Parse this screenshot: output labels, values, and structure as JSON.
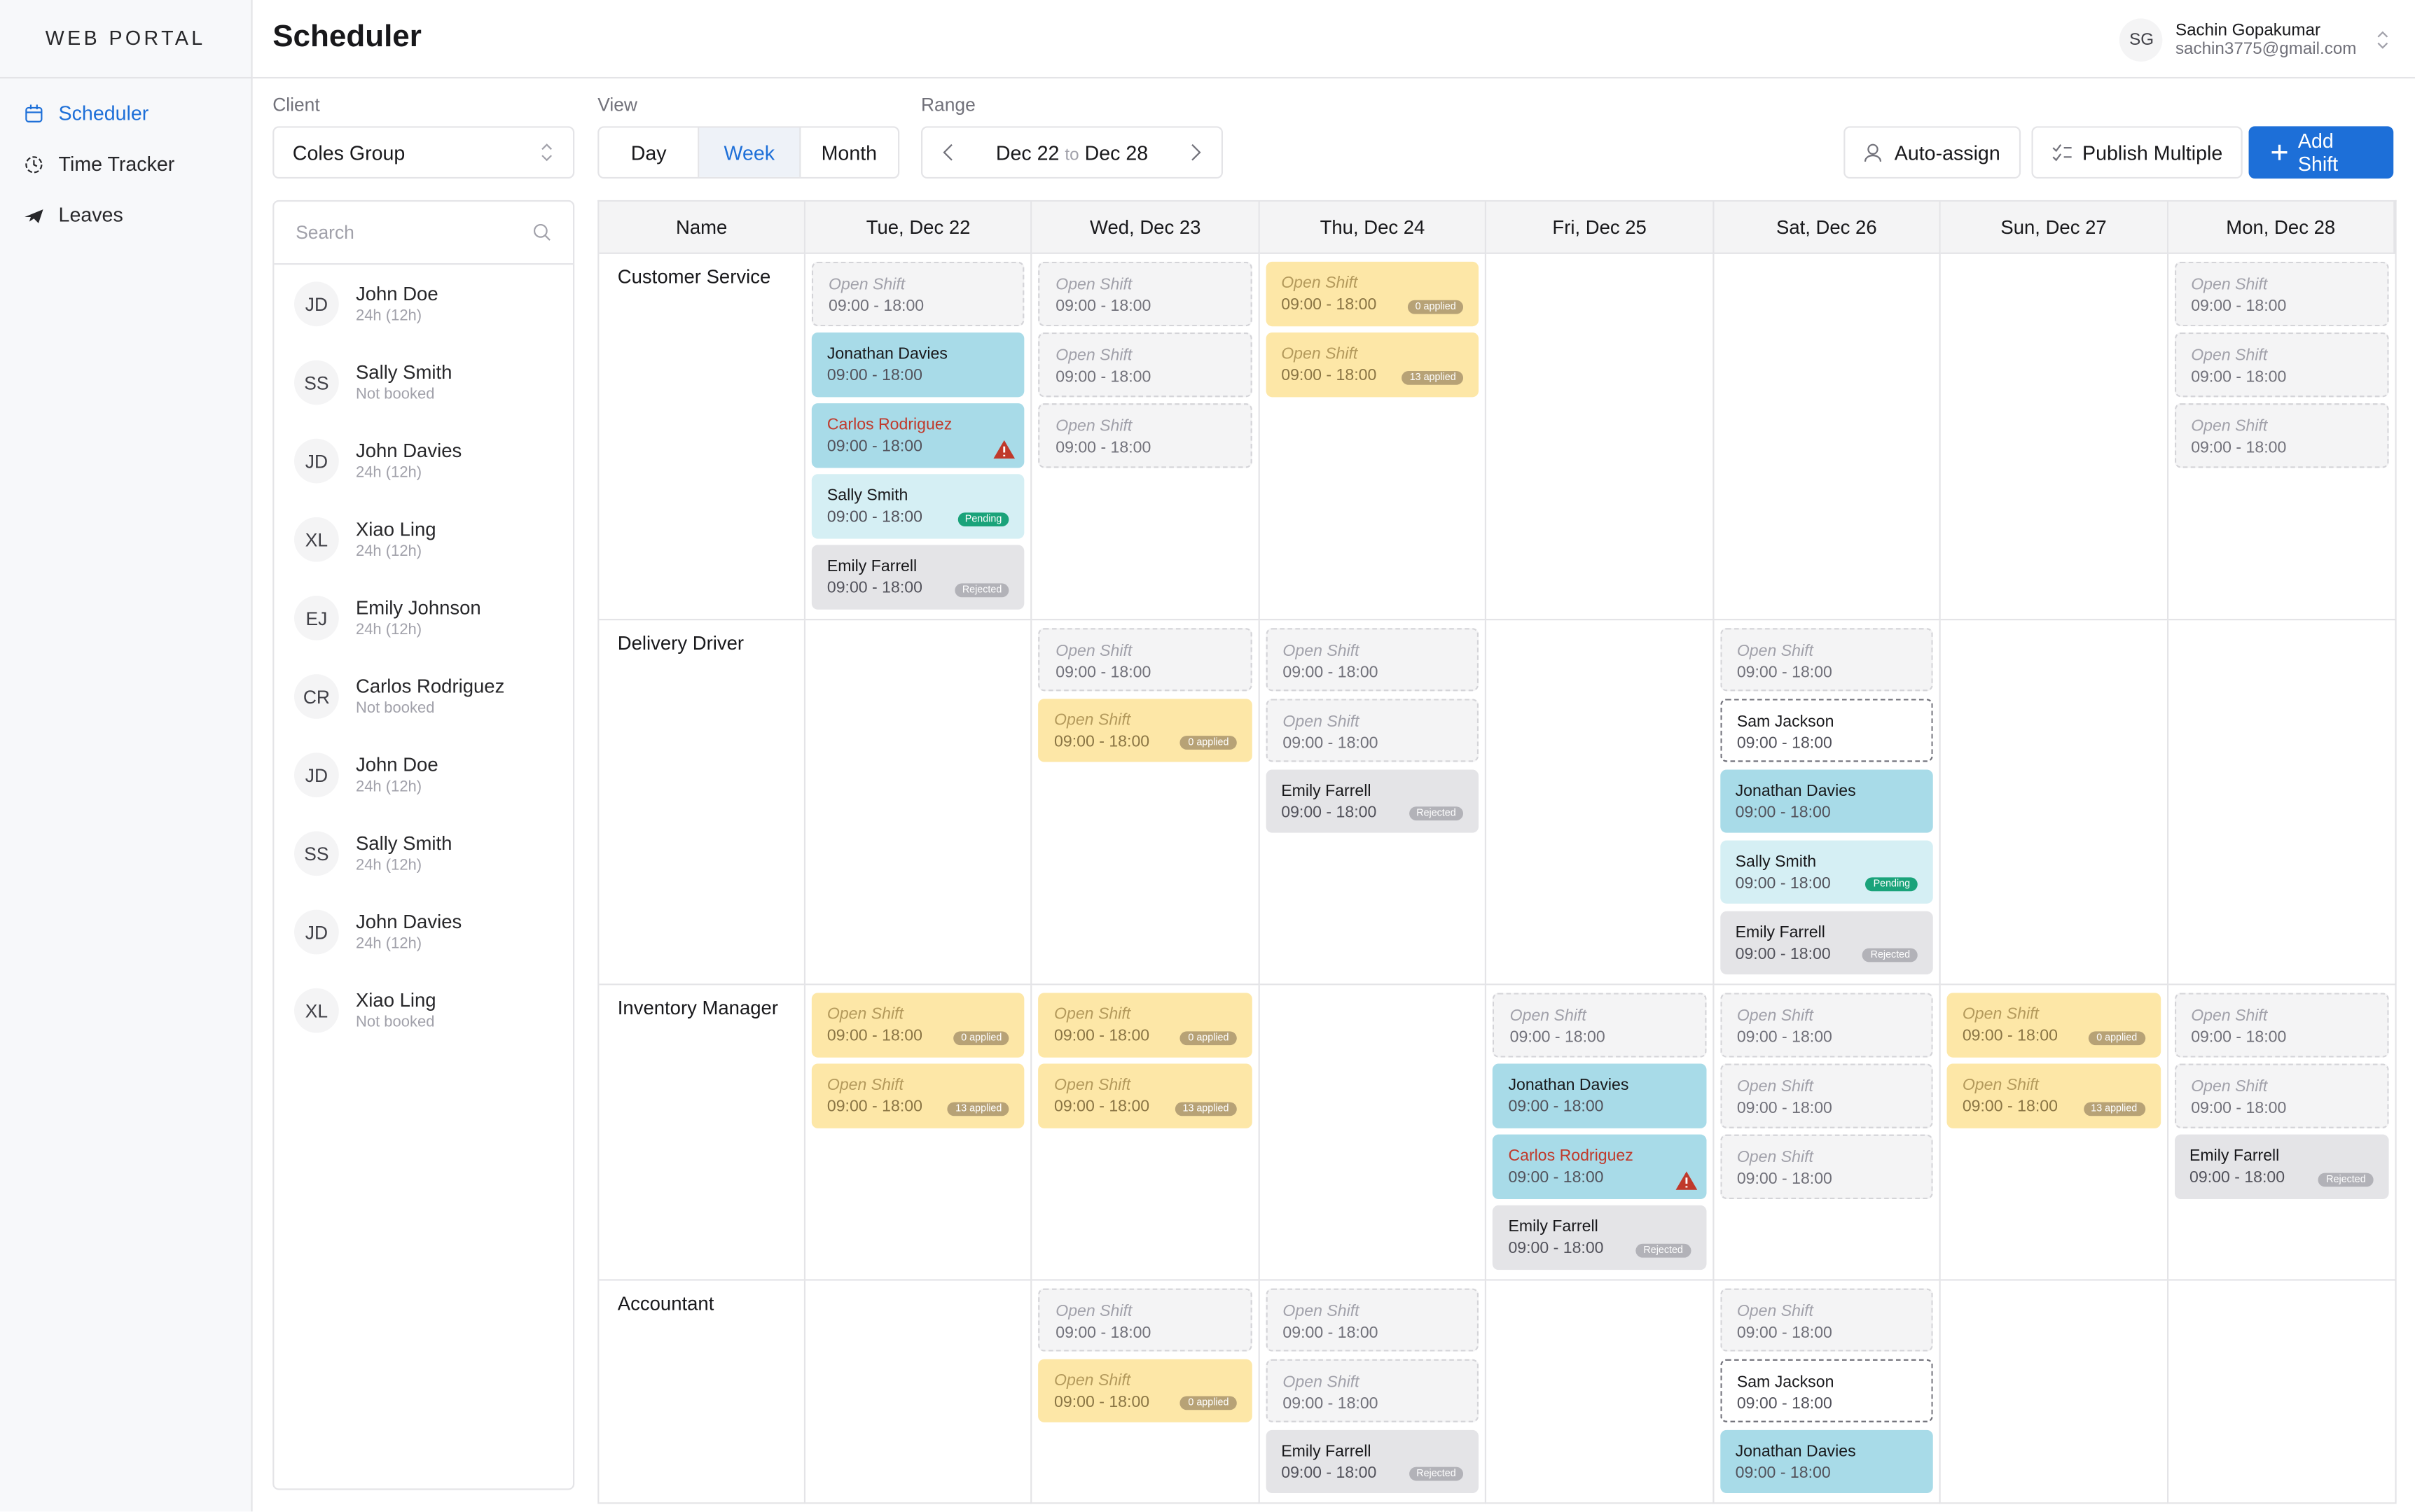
{
  "sidebar": {
    "brand": "WEB PORTAL",
    "nav": [
      "Scheduler",
      "Time Tracker",
      "Leaves"
    ]
  },
  "header": {
    "title": "Scheduler",
    "user": {
      "initials": "SG",
      "name": "Sachin Gopakumar",
      "email": "sachin3775@gmail.com"
    }
  },
  "toolbar": {
    "client_label": "Client",
    "client": "Coles Group",
    "view_label": "View",
    "views": [
      "Day",
      "Week",
      "Month"
    ],
    "active_view": "Week",
    "range_label": "Range",
    "range_from": "Dec 22",
    "range_sep": "to",
    "range_to": "Dec 28",
    "buttons": [
      "Auto-assign",
      "Publish Multiple",
      "Add Shift"
    ]
  },
  "staff": {
    "search_placeholder": "Search",
    "people": [
      {
        "initials": "JD",
        "name": "John Doe",
        "hours": "24h (12h)"
      },
      {
        "initials": "SS",
        "name": "Sally Smith",
        "hours": "Not booked"
      },
      {
        "initials": "JD",
        "name": "John Davies",
        "hours": "24h (12h)"
      },
      {
        "initials": "XL",
        "name": "Xiao Ling",
        "hours": "24h (12h)"
      },
      {
        "initials": "EJ",
        "name": "Emily Johnson",
        "hours": "24h (12h)"
      },
      {
        "initials": "CR",
        "name": "Carlos Rodriguez",
        "hours": "Not booked"
      },
      {
        "initials": "JD",
        "name": "John Doe",
        "hours": "24h (12h)"
      },
      {
        "initials": "SS",
        "name": "Sally Smith",
        "hours": "24h (12h)"
      },
      {
        "initials": "JD",
        "name": "John Davies",
        "hours": "24h (12h)"
      },
      {
        "initials": "XL",
        "name": "Xiao Ling",
        "hours": "Not booked"
      }
    ]
  },
  "schedule": {
    "name_header": "Name",
    "days": [
      "Tue, Dec 22",
      "Wed, Dec 23",
      "Thu, Dec 24",
      "Fri, Dec 25",
      "Sat, Dec 26",
      "Sun, Dec 27",
      "Mon, Dec 28"
    ],
    "rows": [
      {
        "role": "Customer Service",
        "cells": [
          [
            {
              "style": "open",
              "label": "Open Shift",
              "time": "09:00 - 18:00"
            },
            {
              "style": "confirmed",
              "label": "Jonathan Davies",
              "time": "09:00 - 18:00"
            },
            {
              "style": "conflict",
              "label": "Carlos Rodriguez",
              "time": "09:00 - 18:00"
            },
            {
              "style": "pending",
              "label": "Sally Smith",
              "time": "09:00 - 18:00",
              "badge": "Pending"
            },
            {
              "style": "rejected",
              "label": "Emily Farrell",
              "time": "09:00 - 18:00",
              "badge": "Rejected"
            }
          ],
          [
            {
              "style": "open",
              "label": "Open Shift",
              "time": "09:00 - 18:00"
            },
            {
              "style": "open",
              "label": "Open Shift",
              "time": "09:00 - 18:00"
            },
            {
              "style": "open",
              "label": "Open Shift",
              "time": "09:00 - 18:00"
            }
          ],
          [
            {
              "style": "applied",
              "label": "Open Shift",
              "time": "09:00 - 18:00",
              "badge": "0 applied"
            },
            {
              "style": "applied",
              "label": "Open Shift",
              "time": "09:00 - 18:00",
              "badge": "13 applied"
            }
          ],
          [],
          [],
          [],
          [
            {
              "style": "open",
              "label": "Open Shift",
              "time": "09:00 - 18:00"
            },
            {
              "style": "open",
              "label": "Open Shift",
              "time": "09:00 - 18:00"
            },
            {
              "style": "open",
              "label": "Open Shift",
              "time": "09:00 - 18:00"
            }
          ]
        ]
      },
      {
        "role": "Delivery Driver",
        "cells": [
          [],
          [
            {
              "style": "open",
              "label": "Open Shift",
              "time": "09:00 - 18:00"
            },
            {
              "style": "applied",
              "label": "Open Shift",
              "time": "09:00 - 18:00",
              "badge": "0 applied"
            }
          ],
          [
            {
              "style": "open",
              "label": "Open Shift",
              "time": "09:00 - 18:00"
            },
            {
              "style": "open",
              "label": "Open Shift",
              "time": "09:00 - 18:00"
            },
            {
              "style": "rejected",
              "label": "Emily Farrell",
              "time": "09:00 - 18:00",
              "badge": "Rejected"
            }
          ],
          [],
          [
            {
              "style": "open",
              "label": "Open Shift",
              "time": "09:00 - 18:00"
            },
            {
              "style": "draft",
              "label": "Sam Jackson",
              "time": "09:00 - 18:00"
            },
            {
              "style": "confirmed",
              "label": "Jonathan Davies",
              "time": "09:00 - 18:00"
            },
            {
              "style": "pending",
              "label": "Sally Smith",
              "time": "09:00 - 18:00",
              "badge": "Pending"
            },
            {
              "style": "rejected",
              "label": "Emily Farrell",
              "time": "09:00 - 18:00",
              "badge": "Rejected"
            }
          ],
          [],
          []
        ]
      },
      {
        "role": "Inventory Manager",
        "cells": [
          [
            {
              "style": "applied",
              "label": "Open Shift",
              "time": "09:00 - 18:00",
              "badge": "0 applied"
            },
            {
              "style": "applied",
              "label": "Open Shift",
              "time": "09:00 - 18:00",
              "badge": "13 applied"
            }
          ],
          [
            {
              "style": "applied",
              "label": "Open Shift",
              "time": "09:00 - 18:00",
              "badge": "0 applied"
            },
            {
              "style": "applied",
              "label": "Open Shift",
              "time": "09:00 - 18:00",
              "badge": "13 applied"
            }
          ],
          [],
          [
            {
              "style": "open",
              "label": "Open Shift",
              "time": "09:00 - 18:00"
            },
            {
              "style": "confirmed",
              "label": "Jonathan Davies",
              "time": "09:00 - 18:00"
            },
            {
              "style": "conflict",
              "label": "Carlos Rodriguez",
              "time": "09:00 - 18:00"
            },
            {
              "style": "rejected",
              "label": "Emily Farrell",
              "time": "09:00 - 18:00",
              "badge": "Rejected"
            }
          ],
          [
            {
              "style": "open",
              "label": "Open Shift",
              "time": "09:00 - 18:00"
            },
            {
              "style": "open",
              "label": "Open Shift",
              "time": "09:00 - 18:00"
            },
            {
              "style": "open",
              "label": "Open Shift",
              "time": "09:00 - 18:00"
            }
          ],
          [
            {
              "style": "applied",
              "label": "Open Shift",
              "time": "09:00 - 18:00",
              "badge": "0 applied"
            },
            {
              "style": "applied",
              "label": "Open Shift",
              "time": "09:00 - 18:00",
              "badge": "13 applied"
            }
          ],
          [
            {
              "style": "open",
              "label": "Open Shift",
              "time": "09:00 - 18:00"
            },
            {
              "style": "open",
              "label": "Open Shift",
              "time": "09:00 - 18:00"
            },
            {
              "style": "rejected",
              "label": "Emily Farrell",
              "time": "09:00 - 18:00",
              "badge": "Rejected"
            }
          ]
        ]
      },
      {
        "role": "Accountant",
        "cells": [
          [],
          [
            {
              "style": "open",
              "label": "Open Shift",
              "time": "09:00 - 18:00"
            },
            {
              "style": "applied",
              "label": "Open Shift",
              "time": "09:00 - 18:00",
              "badge": "0 applied"
            }
          ],
          [
            {
              "style": "open",
              "label": "Open Shift",
              "time": "09:00 - 18:00"
            },
            {
              "style": "open",
              "label": "Open Shift",
              "time": "09:00 - 18:00"
            },
            {
              "style": "rejected",
              "label": "Emily Farrell",
              "time": "09:00 - 18:00",
              "badge": "Rejected"
            }
          ],
          [],
          [
            {
              "style": "open",
              "label": "Open Shift",
              "time": "09:00 - 18:00"
            },
            {
              "style": "draft",
              "label": "Sam Jackson",
              "time": "09:00 - 18:00"
            },
            {
              "style": "confirmed",
              "label": "Jonathan Davies",
              "time": "09:00 - 18:00"
            }
          ],
          [],
          []
        ]
      }
    ]
  }
}
